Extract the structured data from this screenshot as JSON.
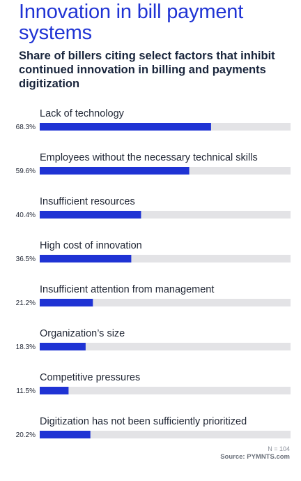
{
  "title": "Innovation in bill payment systems",
  "subtitle": "Share of billers citing select factors that inhibit continued innovation in billing and payments digitization",
  "chart_data": {
    "type": "bar",
    "orientation": "horizontal",
    "title": "Innovation in bill payment systems",
    "subtitle": "Share of billers citing select factors that inhibit continued innovation in billing and payments digitization",
    "categories": [
      "Lack of technology",
      "Employees without the necessary technical skills",
      "Insufficient resources",
      "High cost of innovation",
      "Insufficient attention from management",
      "Organization’s size",
      "Competitive pressures",
      "Digitization has not been sufficiently prioritized"
    ],
    "values": [
      68.3,
      59.6,
      40.4,
      36.5,
      21.2,
      18.3,
      11.5,
      20.2
    ],
    "value_labels": [
      "68.3%",
      "59.6%",
      "40.4%",
      "36.5%",
      "21.2%",
      "18.3%",
      "11.5%",
      "20.2%"
    ],
    "xlim": [
      0,
      100
    ],
    "unit": "%",
    "bar_color": "#1f33d4",
    "track_color": "#e3e3e6",
    "grid": false,
    "legend": "none"
  },
  "footer": {
    "n": "N = 104",
    "source": "Source: PYMNTS.com"
  },
  "colors": {
    "accent": "#1f33d4",
    "title_text": "#1f33d4",
    "subtitle_text": "#18243b",
    "label_text": "#1f2533"
  }
}
